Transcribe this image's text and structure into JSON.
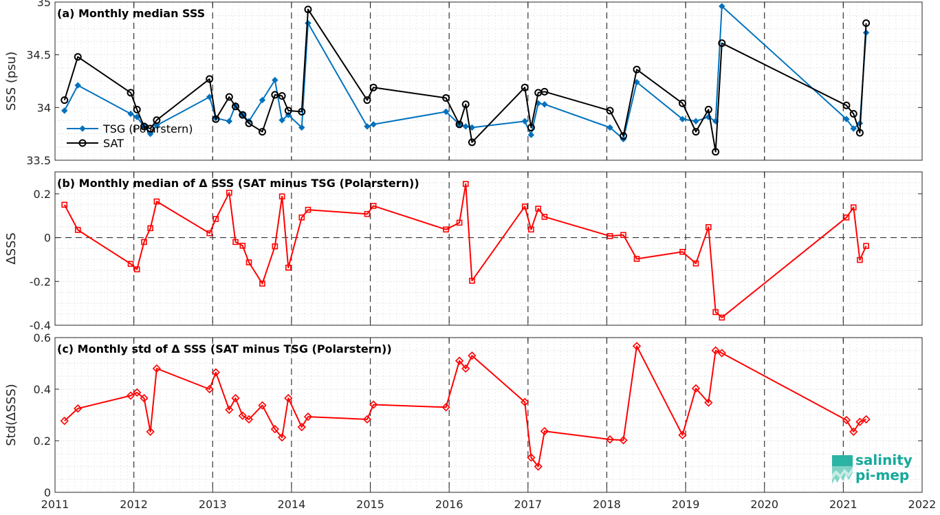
{
  "chart_data": [
    {
      "type": "line",
      "title": "(a) Monthly median SSS",
      "ylabel": "SSS (psu)",
      "xlabel": "",
      "xlim": [
        2011,
        2022
      ],
      "ylim": [
        33.5,
        35
      ],
      "yticks": [
        33.5,
        34,
        34.5,
        35
      ],
      "yticklabels": [
        "33.5",
        "34",
        "34.5",
        "35"
      ],
      "grid": "dotted minor",
      "legend": "bottom-left",
      "series": [
        {
          "name": "TSG (Polarstern)",
          "color": "#0072bd",
          "marker": "diamond-filled",
          "x": [
            2011.12,
            2011.29,
            2011.96,
            2012.04,
            2012.13,
            2012.21,
            2012.29,
            2012.96,
            2013.04,
            2013.21,
            2013.29,
            2013.38,
            2013.46,
            2013.63,
            2013.79,
            2013.88,
            2013.96,
            2014.13,
            2014.21,
            2014.96,
            2015.04,
            2015.96,
            2016.13,
            2016.21,
            2016.29,
            2016.96,
            2017.04,
            2017.13,
            2017.21,
            2018.04,
            2018.21,
            2018.38,
            2018.96,
            2019.13,
            2019.29,
            2019.38,
            2019.46,
            2021.04,
            2021.13,
            2021.21,
            2021.29
          ],
          "y": [
            33.97,
            34.21,
            33.94,
            33.91,
            33.82,
            33.75,
            33.83,
            34.1,
            33.9,
            33.87,
            34.02,
            33.93,
            33.87,
            34.07,
            34.26,
            33.88,
            33.93,
            33.81,
            34.8,
            33.82,
            33.84,
            33.96,
            33.84,
            33.82,
            33.81,
            33.87,
            33.74,
            34.04,
            34.03,
            33.81,
            33.7,
            34.24,
            33.89,
            33.87,
            33.91,
            33.87,
            34.96,
            33.89,
            33.8,
            33.85,
            34.71
          ]
        },
        {
          "name": "SAT",
          "color": "#000000",
          "marker": "circle-open",
          "x": [
            2011.12,
            2011.29,
            2011.96,
            2012.04,
            2012.13,
            2012.21,
            2012.29,
            2012.96,
            2013.04,
            2013.21,
            2013.29,
            2013.38,
            2013.46,
            2013.63,
            2013.79,
            2013.88,
            2013.96,
            2014.13,
            2014.21,
            2014.96,
            2015.04,
            2015.96,
            2016.13,
            2016.21,
            2016.29,
            2016.96,
            2017.04,
            2017.13,
            2017.21,
            2018.04,
            2018.21,
            2018.38,
            2018.96,
            2019.13,
            2019.29,
            2019.38,
            2019.46,
            2021.04,
            2021.13,
            2021.21,
            2021.29
          ],
          "y": [
            34.07,
            34.48,
            34.14,
            33.98,
            33.82,
            33.8,
            33.88,
            34.27,
            33.89,
            34.1,
            34.01,
            33.93,
            33.85,
            33.77,
            34.12,
            34.11,
            33.97,
            33.96,
            34.93,
            34.07,
            34.19,
            34.09,
            33.84,
            34.03,
            33.67,
            34.19,
            33.81,
            34.14,
            34.15,
            33.97,
            33.73,
            34.36,
            34.04,
            33.77,
            33.98,
            33.58,
            34.61,
            34.02,
            33.94,
            33.76,
            34.8
          ]
        }
      ]
    },
    {
      "type": "line",
      "title": "(b) Monthly median of Δ SSS (SAT minus TSG (Polarstern))",
      "ylabel": "ΔSSS",
      "xlabel": "",
      "xlim": [
        2011,
        2022
      ],
      "ylim": [
        -0.4,
        0.3
      ],
      "yticks": [
        -0.4,
        -0.2,
        0,
        0.2
      ],
      "yticklabels": [
        "-0.4",
        "-0.2",
        "0",
        "0.2"
      ],
      "grid": "dotted minor",
      "series": [
        {
          "color": "#ff0000",
          "marker": "square-open",
          "x": [
            2011.12,
            2011.29,
            2011.96,
            2012.04,
            2012.13,
            2012.21,
            2012.29,
            2012.96,
            2013.04,
            2013.21,
            2013.29,
            2013.38,
            2013.46,
            2013.63,
            2013.79,
            2013.88,
            2013.96,
            2014.13,
            2014.21,
            2014.96,
            2015.04,
            2015.96,
            2016.13,
            2016.21,
            2016.29,
            2016.96,
            2017.04,
            2017.13,
            2017.21,
            2018.04,
            2018.21,
            2018.38,
            2018.96,
            2019.13,
            2019.29,
            2019.38,
            2019.46,
            2021.04,
            2021.13,
            2021.21,
            2021.29
          ],
          "y": [
            0.15,
            0.035,
            -0.12,
            -0.145,
            -0.02,
            0.043,
            0.165,
            0.02,
            0.085,
            0.205,
            -0.02,
            -0.037,
            -0.113,
            -0.21,
            -0.04,
            0.188,
            -0.137,
            0.092,
            0.127,
            0.108,
            0.145,
            0.037,
            0.068,
            0.245,
            -0.197,
            0.142,
            0.037,
            0.132,
            0.095,
            0.007,
            0.012,
            -0.097,
            -0.065,
            -0.118,
            0.048,
            -0.34,
            -0.365,
            0.092,
            0.138,
            -0.102,
            -0.038
          ]
        }
      ]
    },
    {
      "type": "line",
      "title": "(c) Monthly std of Δ SSS (SAT minus TSG (Polarstern))",
      "ylabel": "Std(ΔSSS)",
      "xlabel": "",
      "xlim": [
        2011,
        2022
      ],
      "ylim": [
        0,
        0.6
      ],
      "yticks": [
        0,
        0.2,
        0.4,
        0.6
      ],
      "yticklabels": [
        "0",
        "0.2",
        "0.4",
        "0.6"
      ],
      "xticks": [
        2011,
        2012,
        2013,
        2014,
        2015,
        2016,
        2017,
        2018,
        2019,
        2020,
        2021,
        2022
      ],
      "xticklabels": [
        "2011",
        "2012",
        "2013",
        "2014",
        "2015",
        "2016",
        "2017",
        "2018",
        "2019",
        "2020",
        "2021",
        "2022"
      ],
      "grid": "dotted minor",
      "series": [
        {
          "color": "#ff0000",
          "marker": "diamond-open",
          "x": [
            2011.12,
            2011.29,
            2011.96,
            2012.04,
            2012.13,
            2012.21,
            2012.29,
            2012.96,
            2013.04,
            2013.21,
            2013.29,
            2013.38,
            2013.46,
            2013.63,
            2013.79,
            2013.88,
            2013.96,
            2014.13,
            2014.21,
            2014.96,
            2015.04,
            2015.96,
            2016.13,
            2016.21,
            2016.29,
            2016.96,
            2017.04,
            2017.13,
            2017.21,
            2018.04,
            2018.21,
            2018.38,
            2018.96,
            2019.13,
            2019.29,
            2019.38,
            2019.46,
            2021.04,
            2021.13,
            2021.21,
            2021.29
          ],
          "y": [
            0.277,
            0.325,
            0.375,
            0.387,
            0.365,
            0.235,
            0.48,
            0.4,
            0.465,
            0.32,
            0.365,
            0.297,
            0.283,
            0.337,
            0.245,
            0.213,
            0.365,
            0.253,
            0.293,
            0.283,
            0.34,
            0.33,
            0.51,
            0.48,
            0.53,
            0.35,
            0.135,
            0.1,
            0.237,
            0.205,
            0.202,
            0.567,
            0.222,
            0.403,
            0.348,
            0.55,
            0.54,
            0.28,
            0.235,
            0.273,
            0.283
          ]
        }
      ]
    }
  ],
  "logo": {
    "line1": "salinity",
    "line2": "pi-mep",
    "color": "#16a99b"
  }
}
